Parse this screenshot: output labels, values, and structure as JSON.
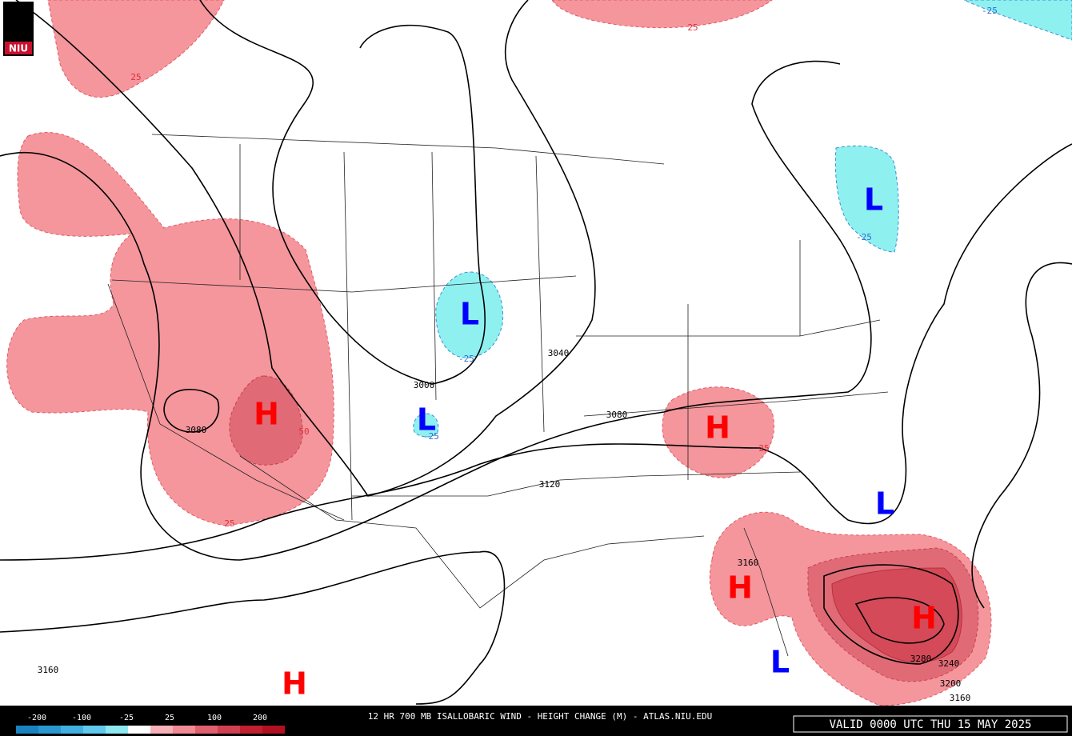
{
  "logo": "NIU",
  "footer": {
    "title": "12 HR 700 MB ISALLOBARIC WIND - HEIGHT CHANGE (M) - ATLAS.NIU.EDU",
    "valid": "VALID 0000 UTC THU 15 MAY 2025"
  },
  "legend": {
    "labels": [
      "-200",
      "-100",
      "-25",
      "25",
      "100",
      "200"
    ]
  },
  "centers": [
    "H",
    "L",
    "L",
    "H",
    "L",
    "L",
    "H",
    "H",
    "L",
    "H"
  ],
  "contour_labels": [
    "3000",
    "3040",
    "3080",
    "3080",
    "3120",
    "3160",
    "3160",
    "3200",
    "3240",
    "3280",
    "3160"
  ],
  "change_labels": [
    "25",
    "25",
    "25",
    "50",
    "25",
    "-25",
    "-25",
    "-25",
    "-25"
  ]
}
